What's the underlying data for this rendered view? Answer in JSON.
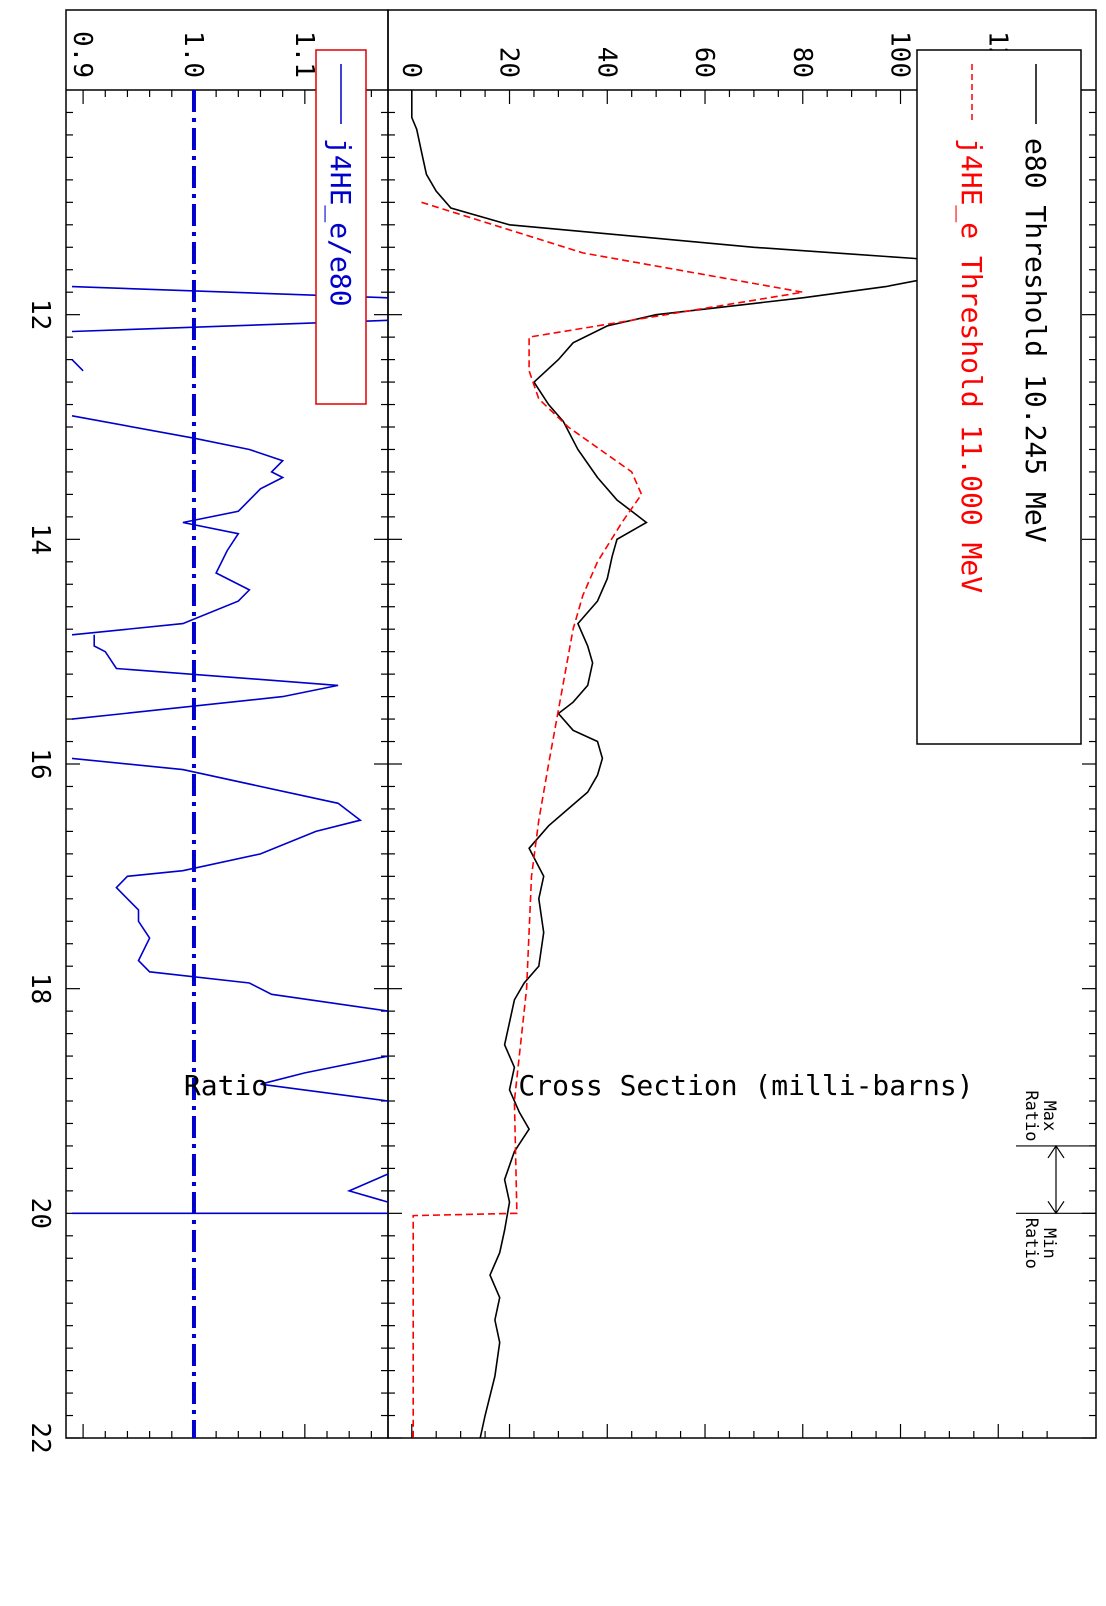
{
  "chart_data": [
    {
      "type": "line",
      "panel": "cross-section",
      "title": "",
      "xlabel": "",
      "ylabel": "Cross Section (milli-barns)",
      "xlim": [
        10.0,
        22.0
      ],
      "ylim": [
        -2,
        140
      ],
      "x_ticks": [
        "12",
        "14",
        "16",
        "18",
        "20",
        "22"
      ],
      "y_ticks": [
        "0",
        "20",
        "40",
        "60",
        "80",
        "100",
        "120"
      ],
      "grid": false,
      "legend_position": "top-left",
      "series": [
        {
          "name": "e80 Threshold 10.245 MeV",
          "color": "#000000",
          "style": "solid",
          "points": [
            [
              10.0,
              0
            ],
            [
              10.245,
              0
            ],
            [
              10.35,
              1
            ],
            [
              10.55,
              2
            ],
            [
              10.75,
              3
            ],
            [
              10.9,
              5
            ],
            [
              11.05,
              8
            ],
            [
              11.2,
              20
            ],
            [
              11.4,
              70
            ],
            [
              11.5,
              103
            ],
            [
              11.6,
              115
            ],
            [
              11.75,
              97
            ],
            [
              11.85,
              80
            ],
            [
              12.0,
              50
            ],
            [
              12.1,
              40
            ],
            [
              12.25,
              33
            ],
            [
              12.4,
              30
            ],
            [
              12.6,
              25
            ],
            [
              12.8,
              28
            ],
            [
              12.95,
              31
            ],
            [
              13.2,
              34
            ],
            [
              13.45,
              38
            ],
            [
              13.65,
              42
            ],
            [
              13.85,
              48
            ],
            [
              14.0,
              42
            ],
            [
              14.15,
              41
            ],
            [
              14.35,
              40
            ],
            [
              14.55,
              38
            ],
            [
              14.75,
              34
            ],
            [
              14.95,
              36
            ],
            [
              15.1,
              37
            ],
            [
              15.3,
              36
            ],
            [
              15.45,
              33
            ],
            [
              15.55,
              30
            ],
            [
              15.7,
              33
            ],
            [
              15.8,
              38
            ],
            [
              15.95,
              39
            ],
            [
              16.1,
              38
            ],
            [
              16.25,
              36
            ],
            [
              16.4,
              32
            ],
            [
              16.55,
              28
            ],
            [
              16.75,
              24
            ],
            [
              17.0,
              27
            ],
            [
              17.2,
              26
            ],
            [
              17.5,
              27
            ],
            [
              17.8,
              26
            ],
            [
              17.95,
              23
            ],
            [
              18.1,
              21
            ],
            [
              18.3,
              20
            ],
            [
              18.5,
              19
            ],
            [
              18.7,
              21
            ],
            [
              18.9,
              20
            ],
            [
              19.1,
              22
            ],
            [
              19.25,
              24
            ],
            [
              19.45,
              21
            ],
            [
              19.7,
              19
            ],
            [
              19.9,
              20
            ],
            [
              20.15,
              19
            ],
            [
              20.35,
              18
            ],
            [
              20.55,
              16
            ],
            [
              20.75,
              18
            ],
            [
              20.95,
              17
            ],
            [
              21.15,
              18
            ],
            [
              21.45,
              17
            ],
            [
              21.8,
              15
            ],
            [
              22.0,
              14
            ]
          ]
        },
        {
          "name": "j4HE_e Threshold 11.000 MeV",
          "color": "#ff0000",
          "style": "dashed",
          "points": [
            [
              11.0,
              2
            ],
            [
              11.45,
              35
            ],
            [
              11.8,
              80
            ],
            [
              12.0,
              52
            ],
            [
              12.2,
              24
            ],
            [
              12.5,
              24
            ],
            [
              12.75,
              26
            ],
            [
              13.0,
              32
            ],
            [
              13.4,
              45
            ],
            [
              13.6,
              47
            ],
            [
              13.85,
              43
            ],
            [
              14.2,
              38
            ],
            [
              14.5,
              35
            ],
            [
              14.8,
              33
            ],
            [
              16.0,
              28
            ],
            [
              16.5,
              26
            ],
            [
              17.0,
              24.5
            ],
            [
              18.0,
              23.5
            ],
            [
              19.0,
              21
            ],
            [
              20.0,
              21.5
            ],
            [
              20.02,
              0.3
            ],
            [
              22.0,
              0.3
            ]
          ]
        }
      ],
      "annotations": [
        {
          "text": "Max Ratio",
          "x": 19.4
        },
        {
          "text": "Min Ratio",
          "x": 20.0
        }
      ]
    },
    {
      "type": "line",
      "panel": "ratio",
      "title": "",
      "xlabel": "",
      "ylabel": "Ratio",
      "xlim": [
        10.0,
        22.0
      ],
      "ylim": [
        0.89,
        1.175
      ],
      "x_ticks": [
        "12",
        "14",
        "16",
        "18",
        "20",
        "22"
      ],
      "y_ticks": [
        "0.9",
        "1.0",
        "1.1"
      ],
      "grid": false,
      "legend_position": "top-left",
      "reference_line": 1.0,
      "series": [
        {
          "name": "j4HE_e/e80",
          "color": "#0000cc",
          "style": "solid",
          "segments": [
            [
              [
                11.75,
                0.89
              ],
              [
                11.85,
                1.175
              ]
            ],
            [
              [
                12.05,
                1.175
              ],
              [
                12.15,
                0.89
              ]
            ],
            [
              [
                12.4,
                0.89
              ],
              [
                12.5,
                0.9
              ]
            ],
            [
              [
                12.9,
                0.89
              ],
              [
                13.1,
                1.0
              ],
              [
                13.2,
                1.05
              ],
              [
                13.3,
                1.08
              ],
              [
                13.4,
                1.07
              ],
              [
                13.45,
                1.08
              ],
              [
                13.55,
                1.06
              ],
              [
                13.75,
                1.04
              ],
              [
                13.85,
                0.99
              ],
              [
                13.95,
                1.04
              ],
              [
                14.1,
                1.03
              ],
              [
                14.3,
                1.02
              ],
              [
                14.45,
                1.05
              ],
              [
                14.55,
                1.04
              ],
              [
                14.75,
                0.99
              ],
              [
                14.85,
                0.89
              ]
            ],
            [
              [
                14.85,
                0.91
              ],
              [
                14.95,
                0.91
              ],
              [
                15.0,
                0.92
              ],
              [
                15.15,
                0.93
              ],
              [
                15.3,
                1.13
              ],
              [
                15.4,
                1.08
              ],
              [
                15.6,
                0.89
              ]
            ],
            [
              [
                15.95,
                0.89
              ],
              [
                16.05,
                0.99
              ],
              [
                16.35,
                1.13
              ],
              [
                16.5,
                1.15
              ],
              [
                16.6,
                1.11
              ],
              [
                16.8,
                1.06
              ],
              [
                16.95,
                0.99
              ],
              [
                17.0,
                0.94
              ],
              [
                17.1,
                0.93
              ],
              [
                17.3,
                0.95
              ],
              [
                17.4,
                0.95
              ],
              [
                17.55,
                0.96
              ],
              [
                17.75,
                0.95
              ],
              [
                17.85,
                0.96
              ],
              [
                17.95,
                1.05
              ],
              [
                18.05,
                1.07
              ],
              [
                18.2,
                1.175
              ]
            ],
            [
              [
                18.6,
                1.175
              ],
              [
                18.75,
                1.1
              ],
              [
                18.85,
                1.06
              ],
              [
                19.0,
                1.175
              ]
            ],
            [
              [
                19.65,
                1.175
              ],
              [
                19.8,
                1.14
              ],
              [
                19.9,
                1.175
              ]
            ],
            [
              [
                20.0,
                0.89
              ],
              [
                20.0,
                1.175
              ]
            ]
          ]
        }
      ]
    }
  ]
}
